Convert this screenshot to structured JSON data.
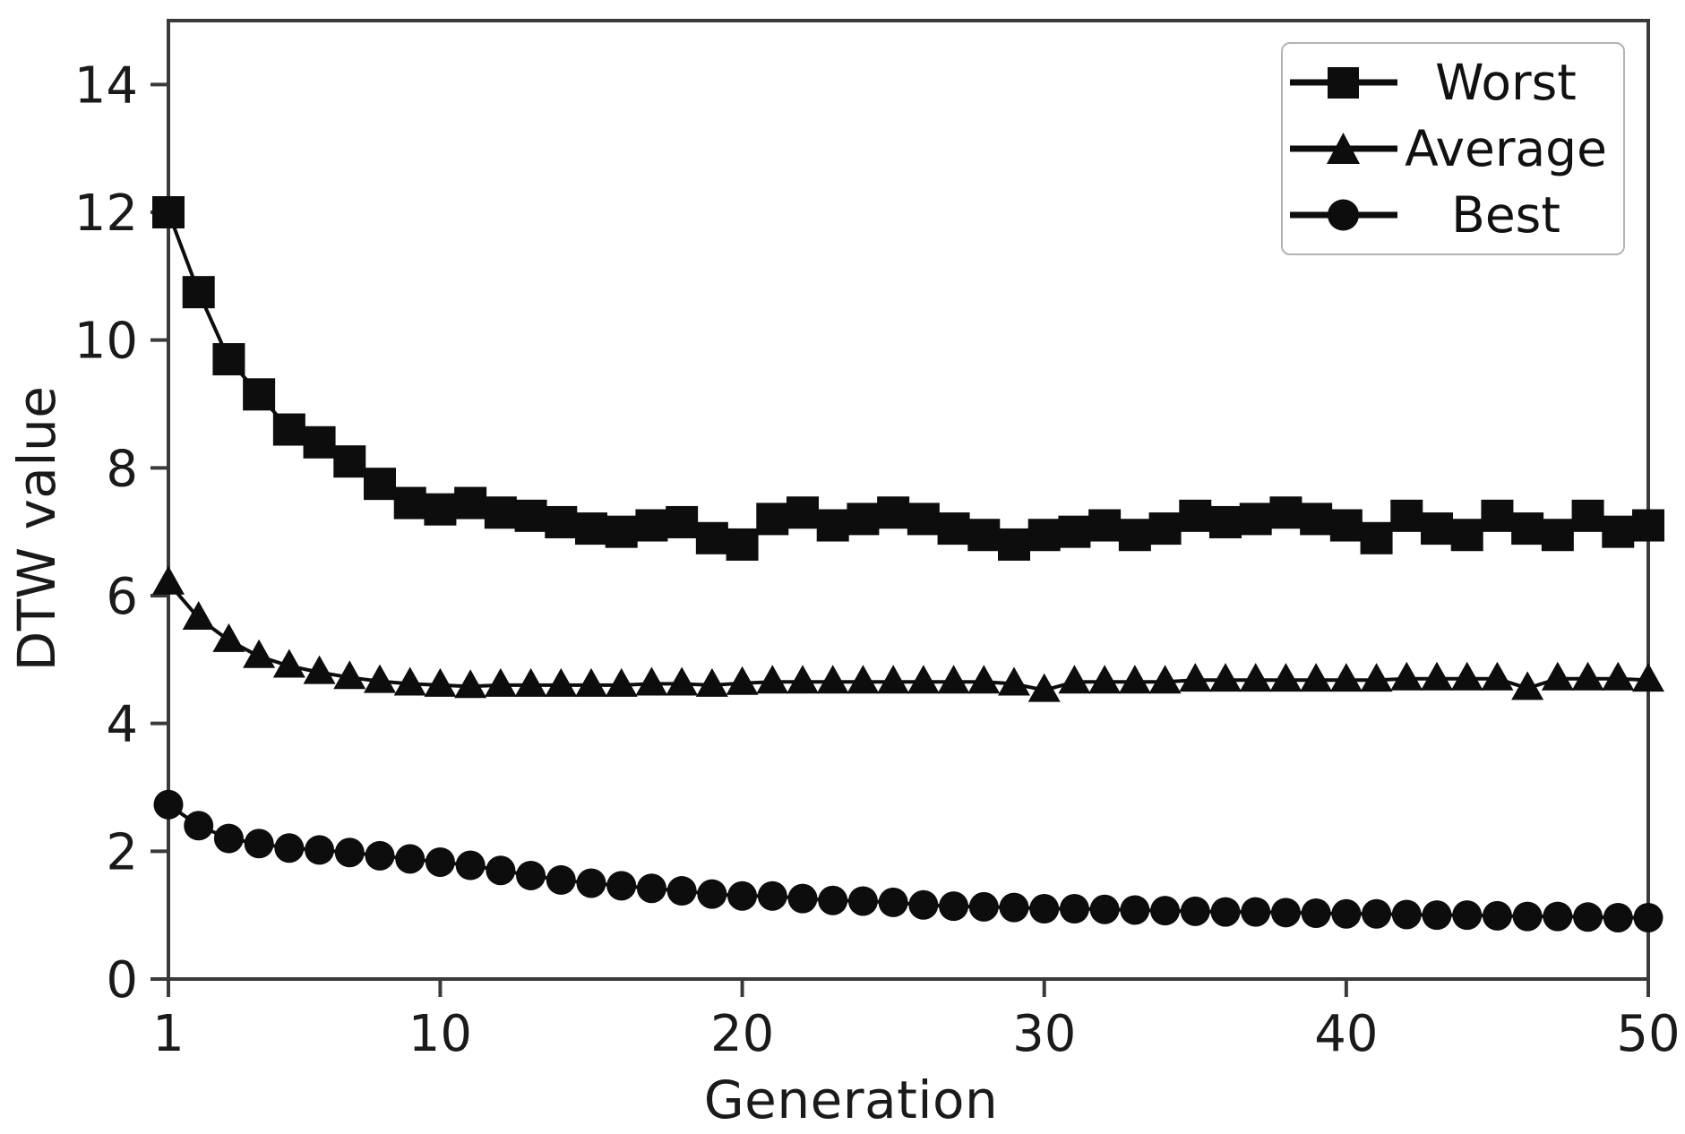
{
  "figure": {
    "background": "#ffffff",
    "frame_color": "#3a3a3a",
    "tick_color": "#3a3a3a",
    "text_color": "#1a1a1a",
    "series_color": "#0d0d0d",
    "legend_border_color": "#b3b3b3"
  },
  "chart_data": {
    "type": "line",
    "title": "",
    "xlabel": "Generation",
    "ylabel": "DTW value",
    "xlim": [
      1,
      50
    ],
    "ylim": [
      0,
      15
    ],
    "x_ticks": [
      1,
      10,
      20,
      30,
      40,
      50
    ],
    "y_ticks": [
      0,
      2,
      4,
      6,
      8,
      10,
      12,
      14
    ],
    "grid": false,
    "legend_position": "upper right",
    "x": [
      1,
      2,
      3,
      4,
      5,
      6,
      7,
      8,
      9,
      10,
      11,
      12,
      13,
      14,
      15,
      16,
      17,
      18,
      19,
      20,
      21,
      22,
      23,
      24,
      25,
      26,
      27,
      28,
      29,
      30,
      31,
      32,
      33,
      34,
      35,
      36,
      37,
      38,
      39,
      40,
      41,
      42,
      43,
      44,
      45,
      46,
      47,
      48,
      49,
      50
    ],
    "series": [
      {
        "name": "Worst",
        "marker": "square",
        "color": "#0d0d0d",
        "values": [
          12.0,
          10.75,
          9.7,
          9.15,
          8.6,
          8.4,
          8.1,
          7.75,
          7.45,
          7.35,
          7.45,
          7.3,
          7.25,
          7.15,
          7.05,
          7.0,
          7.1,
          7.15,
          6.9,
          6.8,
          7.2,
          7.3,
          7.1,
          7.2,
          7.3,
          7.2,
          7.05,
          6.95,
          6.8,
          6.95,
          7.0,
          7.1,
          6.95,
          7.05,
          7.25,
          7.15,
          7.2,
          7.3,
          7.2,
          7.1,
          6.9,
          7.25,
          7.05,
          6.95,
          7.25,
          7.05,
          6.95,
          7.25,
          7.0,
          7.1
        ]
      },
      {
        "name": "Average",
        "marker": "triangle",
        "color": "#0d0d0d",
        "values": [
          6.2,
          5.65,
          5.3,
          5.05,
          4.9,
          4.8,
          4.72,
          4.66,
          4.62,
          4.6,
          4.58,
          4.6,
          4.6,
          4.6,
          4.6,
          4.6,
          4.62,
          4.62,
          4.6,
          4.63,
          4.65,
          4.65,
          4.65,
          4.65,
          4.65,
          4.65,
          4.65,
          4.65,
          4.62,
          4.52,
          4.65,
          4.65,
          4.65,
          4.65,
          4.68,
          4.68,
          4.68,
          4.68,
          4.68,
          4.68,
          4.68,
          4.7,
          4.7,
          4.7,
          4.7,
          4.55,
          4.7,
          4.7,
          4.7,
          4.68
        ]
      },
      {
        "name": "Best",
        "marker": "circle",
        "color": "#0d0d0d",
        "values": [
          2.73,
          2.4,
          2.2,
          2.12,
          2.05,
          2.02,
          1.98,
          1.93,
          1.88,
          1.83,
          1.78,
          1.7,
          1.62,
          1.55,
          1.5,
          1.46,
          1.42,
          1.38,
          1.33,
          1.3,
          1.3,
          1.26,
          1.23,
          1.22,
          1.2,
          1.16,
          1.14,
          1.13,
          1.12,
          1.1,
          1.1,
          1.09,
          1.08,
          1.07,
          1.06,
          1.05,
          1.05,
          1.04,
          1.03,
          1.02,
          1.02,
          1.01,
          1.0,
          1.0,
          0.99,
          0.98,
          0.98,
          0.97,
          0.96,
          0.96
        ]
      }
    ]
  }
}
